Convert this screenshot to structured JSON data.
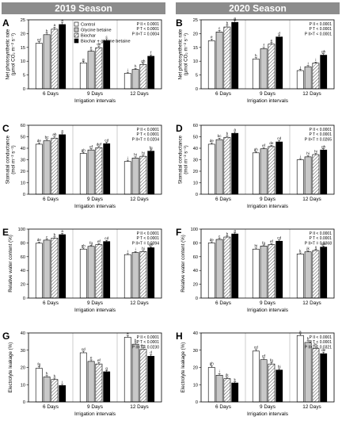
{
  "header": {
    "season_left": "2019 Season",
    "season_right": "2020 Season",
    "band_color": "#8c8c8c"
  },
  "legend": {
    "entries": [
      {
        "label": "Control",
        "fill": "white"
      },
      {
        "label": "Glycine betaine",
        "fill": "light-gray"
      },
      {
        "label": "Biochar",
        "fill": "hatched"
      },
      {
        "label": "Biochar + glycine betaine",
        "fill": "black"
      }
    ]
  },
  "chart_data": [
    {
      "panel": "A",
      "type": "bar",
      "ylabel_lines": [
        "Net photosynthetic rate",
        "(µmol CO₂ m⁻² s⁻¹)"
      ],
      "xlabel": "Irrigation intervals",
      "categories": [
        "6 Days",
        "9 Days",
        "12 Days"
      ],
      "ylim": [
        0,
        25
      ],
      "yticks": [
        0,
        5,
        10,
        15,
        20,
        25
      ],
      "stats": [
        "P II < 0.0001",
        "P T < 0.0001",
        "P II×T = 0.0004"
      ],
      "series": [
        {
          "values": [
            16.5,
            9.4,
            5.6
          ],
          "errors": [
            0.6,
            0.5,
            0.4
          ],
          "letters": [
            "cd",
            "g",
            "i"
          ]
        },
        {
          "values": [
            19.6,
            13.6,
            7.0
          ],
          "errors": [
            0.6,
            0.5,
            0.4
          ],
          "letters": [
            "b",
            "e",
            "h"
          ]
        },
        {
          "values": [
            21.6,
            14.9,
            8.8
          ],
          "errors": [
            0.7,
            0.6,
            0.5
          ],
          "letters": [
            "a",
            "de",
            "gh"
          ]
        },
        {
          "values": [
            23.3,
            17.5,
            11.8
          ],
          "errors": [
            0.8,
            0.6,
            0.5
          ],
          "letters": [
            "a",
            "c",
            "f"
          ]
        }
      ]
    },
    {
      "panel": "B",
      "type": "bar",
      "ylabel_lines": [
        "Net photosynthetic rate",
        "(µmol CO₂ m⁻² s⁻¹)"
      ],
      "xlabel": "Irrigation intervals",
      "categories": [
        "6 Days",
        "9 Days",
        "12 Days"
      ],
      "ylim": [
        0,
        25
      ],
      "yticks": [
        0,
        5,
        10,
        15,
        20,
        25
      ],
      "stats": [
        "P II < 0.0001",
        "P T < 0.0001",
        "P II×T < 0.0001"
      ],
      "series": [
        {
          "values": [
            17.4,
            10.8,
            6.6
          ],
          "errors": [
            0.6,
            0.5,
            0.4
          ],
          "letters": [
            "e",
            "h",
            "j"
          ]
        },
        {
          "values": [
            20.6,
            14.5,
            8.0
          ],
          "errors": [
            0.6,
            0.5,
            0.4
          ],
          "letters": [
            "c",
            "f",
            "i"
          ]
        },
        {
          "values": [
            22.4,
            16.2,
            9.3
          ],
          "errors": [
            0.7,
            0.6,
            0.4
          ],
          "letters": [
            "b",
            "e",
            "i"
          ]
        },
        {
          "values": [
            24.1,
            18.8,
            12.2
          ],
          "errors": [
            0.7,
            0.6,
            0.5
          ],
          "letters": [
            "a",
            "d",
            "gh"
          ]
        }
      ]
    },
    {
      "panel": "C",
      "type": "bar",
      "ylabel_lines": [
        "Stomatal conductance",
        "(mol m⁻² s⁻¹)"
      ],
      "xlabel": "Irrigation intervals",
      "categories": [
        "6 Days",
        "9 Days",
        "12 Days"
      ],
      "ylim": [
        0,
        60
      ],
      "yticks": [
        0,
        10,
        20,
        30,
        40,
        50,
        60
      ],
      "stats": [
        "P II < 0.0001",
        "P T < 0.0001",
        "P II×T = 0.0204"
      ],
      "series": [
        {
          "values": [
            43.5,
            35.5,
            28.5
          ],
          "errors": [
            1.2,
            1.0,
            1.1
          ],
          "letters": [
            "de",
            "gh",
            "i"
          ]
        },
        {
          "values": [
            46.5,
            38.5,
            31.5
          ],
          "errors": [
            1.3,
            1.1,
            1.0
          ],
          "letters": [
            "bc",
            "ef",
            "hi"
          ]
        },
        {
          "values": [
            48.8,
            40.5,
            33.0
          ],
          "errors": [
            1.3,
            1.1,
            1.0
          ],
          "letters": [
            "ab",
            "def",
            "hi"
          ]
        },
        {
          "values": [
            51.8,
            44.0,
            37.5
          ],
          "errors": [
            1.4,
            1.2,
            1.1
          ],
          "letters": [
            "a",
            "cd",
            "fg"
          ]
        }
      ]
    },
    {
      "panel": "D",
      "type": "bar",
      "ylabel_lines": [
        "Stomatal conductance",
        "(mol m⁻² s⁻¹)"
      ],
      "xlabel": "Irrigation intervals",
      "categories": [
        "6 Days",
        "9 Days",
        "12 Days"
      ],
      "ylim": [
        0,
        60
      ],
      "yticks": [
        0,
        10,
        20,
        30,
        40,
        50,
        60
      ],
      "stats": [
        "P II < 0.0001",
        "P T < 0.0001",
        "P II×T = 0.0265"
      ],
      "series": [
        {
          "values": [
            43.5,
            36.0,
            30.0
          ],
          "errors": [
            1.2,
            1.0,
            1.0
          ],
          "letters": [
            "de",
            "gh",
            "i"
          ]
        },
        {
          "values": [
            47.5,
            39.5,
            32.5
          ],
          "errors": [
            1.3,
            1.1,
            1.0
          ],
          "letters": [
            "bc",
            "ef",
            "hi"
          ]
        },
        {
          "values": [
            49.5,
            41.5,
            34.5
          ],
          "errors": [
            1.3,
            1.1,
            1.0
          ],
          "letters": [
            "b",
            "de",
            "hi"
          ]
        },
        {
          "values": [
            53.0,
            45.5,
            38.5
          ],
          "errors": [
            1.4,
            1.2,
            1.1
          ],
          "letters": [
            "a",
            "cd",
            "gh"
          ]
        }
      ]
    },
    {
      "panel": "E",
      "type": "bar",
      "ylabel_lines": [
        "Relative water content (%)"
      ],
      "xlabel": "Irrigation intervals",
      "categories": [
        "6 Days",
        "9 Days",
        "12 Days"
      ],
      "ylim": [
        0,
        100
      ],
      "yticks": [
        0,
        20,
        40,
        60,
        80,
        100
      ],
      "stats": [
        "P II < 0.0001",
        "P T < 0.0001",
        "P II×T = 0.0394"
      ],
      "series": [
        {
          "values": [
            79.5,
            71.0,
            63.0
          ],
          "errors": [
            1.6,
            1.5,
            1.5
          ],
          "letters": [
            "de",
            "gh",
            "i"
          ]
        },
        {
          "values": [
            84.0,
            75.0,
            66.0
          ],
          "errors": [
            1.6,
            1.5,
            1.5
          ],
          "letters": [
            "c",
            "fg",
            "i"
          ]
        },
        {
          "values": [
            87.0,
            77.5,
            67.5
          ],
          "errors": [
            1.7,
            1.6,
            1.5
          ],
          "letters": [
            "b",
            "ef",
            "hi"
          ]
        },
        {
          "values": [
            92.0,
            82.0,
            73.0
          ],
          "errors": [
            1.8,
            1.6,
            1.5
          ],
          "letters": [
            "a",
            "cd",
            "gh"
          ]
        }
      ]
    },
    {
      "panel": "F",
      "type": "bar",
      "ylabel_lines": [
        "Relative water content (%)"
      ],
      "xlabel": "Irrigation intervals",
      "categories": [
        "6 Days",
        "9 Days",
        "12 Days"
      ],
      "ylim": [
        0,
        100
      ],
      "yticks": [
        0,
        20,
        40,
        60,
        80,
        100
      ],
      "stats": [
        "P II < 0.0001",
        "P T < 0.0001",
        "P II×T = 0.0368"
      ],
      "series": [
        {
          "values": [
            80.0,
            71.0,
            64.0
          ],
          "errors": [
            1.6,
            1.5,
            1.5
          ],
          "letters": [
            "de",
            "hi",
            "k"
          ]
        },
        {
          "values": [
            85.0,
            75.5,
            67.0
          ],
          "errors": [
            1.6,
            1.5,
            1.5
          ],
          "letters": [
            "c",
            "fg",
            "jk"
          ]
        },
        {
          "values": [
            88.5,
            77.5,
            69.0
          ],
          "errors": [
            1.7,
            1.6,
            1.5
          ],
          "letters": [
            "b",
            "ef",
            "ij"
          ]
        },
        {
          "values": [
            93.0,
            82.5,
            74.0
          ],
          "errors": [
            1.8,
            1.6,
            1.5
          ],
          "letters": [
            "a",
            "cd",
            "gh"
          ]
        }
      ]
    },
    {
      "panel": "G",
      "type": "bar",
      "ylabel_lines": [
        "Electrolyte leakage (%)"
      ],
      "xlabel": "Irrigation intervals",
      "categories": [
        "6 Days",
        "9 Days",
        "12 Days"
      ],
      "ylim": [
        0,
        40
      ],
      "yticks": [
        0,
        10,
        20,
        30,
        40
      ],
      "stats": [
        "P II < 0.0001",
        "P T < 0.0001",
        "P II×T = 0.0230"
      ],
      "series": [
        {
          "values": [
            19.5,
            28.5,
            37.5
          ],
          "errors": [
            1.0,
            0.9,
            1.0
          ],
          "letters": [
            "fg",
            "cd",
            "a"
          ]
        },
        {
          "values": [
            14.5,
            23.5,
            33.5
          ],
          "errors": [
            0.8,
            0.9,
            1.0
          ],
          "letters": [
            "h",
            "e",
            "b"
          ]
        },
        {
          "values": [
            13.0,
            22.0,
            30.5
          ],
          "errors": [
            0.8,
            0.9,
            1.0
          ],
          "letters": [
            "h",
            "ef",
            "bc"
          ]
        },
        {
          "values": [
            9.5,
            17.5,
            26.5
          ],
          "errors": [
            0.7,
            0.8,
            0.9
          ],
          "letters": [
            "i",
            "g",
            "d"
          ]
        }
      ]
    },
    {
      "panel": "H",
      "type": "bar",
      "ylabel_lines": [
        "Electrolyte leakage (%)"
      ],
      "xlabel": "Irrigation intervals",
      "categories": [
        "6 Days",
        "9 Days",
        "12 Days"
      ],
      "ylim": [
        0,
        40
      ],
      "yticks": [
        0,
        10,
        20,
        30,
        40
      ],
      "stats": [
        "P II < 0.0001",
        "P T < 0.0001",
        "P II×T = 0.0321"
      ],
      "series": [
        {
          "values": [
            20.0,
            29.5,
            38.5
          ],
          "errors": [
            1.0,
            0.9,
            1.0
          ],
          "letters": [
            "gh",
            "cd",
            "a"
          ]
        },
        {
          "values": [
            15.5,
            24.5,
            34.5
          ],
          "errors": [
            0.9,
            0.9,
            1.0
          ],
          "letters": [
            "i",
            "ef",
            "b"
          ]
        },
        {
          "values": [
            13.5,
            22.0,
            31.0
          ],
          "errors": [
            0.8,
            0.9,
            1.0
          ],
          "letters": [
            "jk",
            "fg",
            "bc"
          ]
        },
        {
          "values": [
            11.0,
            18.5,
            28.0
          ],
          "errors": [
            0.7,
            0.8,
            0.9
          ],
          "letters": [
            "k",
            "hi",
            "de"
          ]
        }
      ]
    }
  ]
}
